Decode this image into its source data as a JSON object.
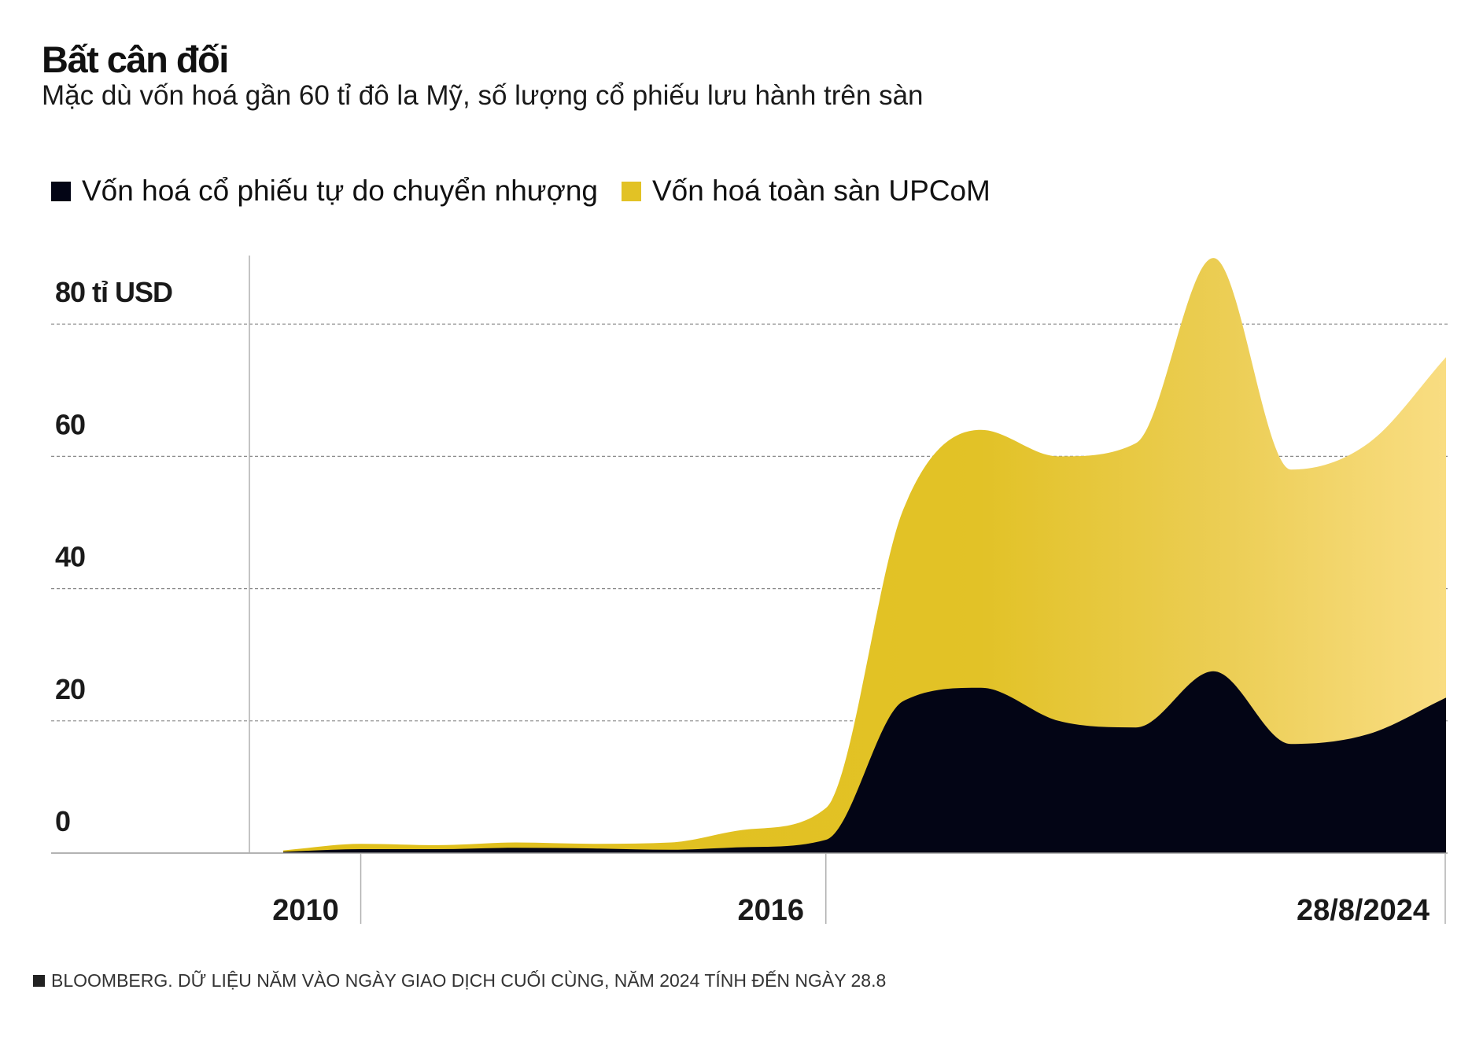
{
  "chart_data": {
    "type": "area",
    "title": "Bất cân đối",
    "subtitle": "Mặc dù vốn hoá gần 60 tỉ đô la Mỹ, số lượng cổ phiếu lưu hành trên sàn",
    "x": [
      2009,
      2010,
      2011,
      2012,
      2013,
      2014,
      2015,
      2016,
      2017,
      2018,
      2019,
      2020,
      2021,
      2022,
      2023,
      2024
    ],
    "series": [
      {
        "name": "Vốn hoá cổ phiếu tự do chuyển nhượng",
        "color": "#030515",
        "values": [
          0.2,
          0.6,
          0.6,
          0.8,
          0.7,
          0.5,
          0.9,
          2.0,
          23,
          25,
          20,
          19,
          27.5,
          16.5,
          18,
          23.5
        ]
      },
      {
        "name": "Vốn hoá toàn sàn UPCoM",
        "color": "#e2c225",
        "values": [
          0.4,
          1.4,
          1.2,
          1.6,
          1.4,
          1.6,
          3.6,
          6.8,
          52,
          64,
          60,
          62,
          90,
          58,
          62,
          75
        ]
      }
    ],
    "ylim": [
      0,
      90
    ],
    "yticks": [
      {
        "value": 0,
        "label": "0"
      },
      {
        "value": 20,
        "label": "20"
      },
      {
        "value": 40,
        "label": "40"
      },
      {
        "value": 60,
        "label": "60"
      },
      {
        "value": 80,
        "label": "80 tỉ USD"
      }
    ],
    "xticks": [
      {
        "value": 2010,
        "label": "2010"
      },
      {
        "value": 2016,
        "label": "2016"
      },
      {
        "value": 2024,
        "label": "28/8/2024"
      }
    ],
    "grid": true,
    "legend": "top-left"
  },
  "footnote": "BLOOMBERG. DỮ LIỆU NĂM VÀO NGÀY GIAO DỊCH CUỐI CÙNG, NĂM 2024 TÍNH ĐẾN NGÀY 28.8"
}
